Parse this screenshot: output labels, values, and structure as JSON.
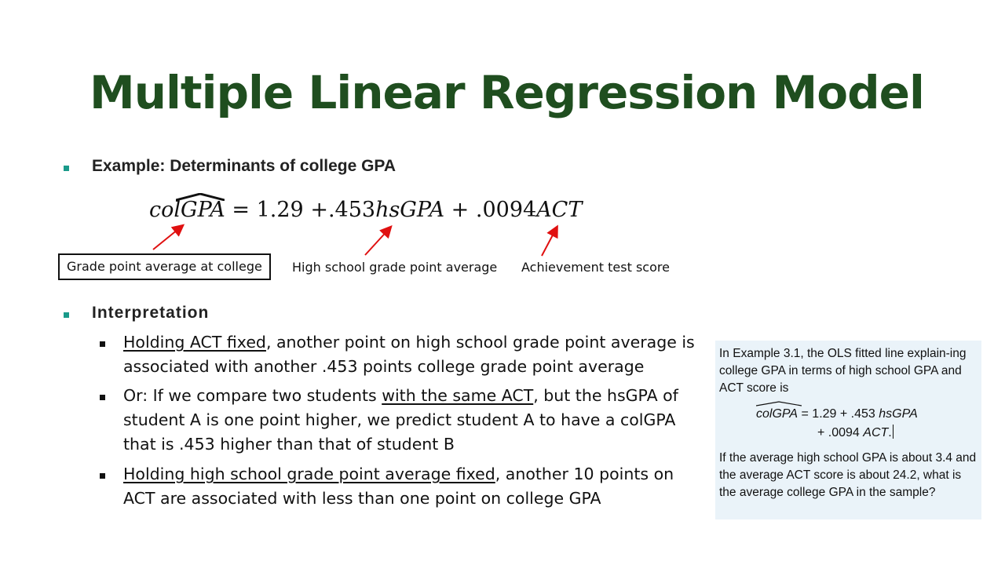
{
  "title": "Multiple Linear Regression Model",
  "example_heading": "Example: Determinants of college GPA",
  "equation": {
    "lhs": "colGPA",
    "rhs": "= 1.29 + .453hsGPA + .0094ACT",
    "terms": [
      "col",
      "GPA",
      "=",
      "1.29",
      "+",
      ".453",
      "hsGPA",
      "+",
      ".0094",
      "ACT"
    ]
  },
  "labels": {
    "colgpa": "Grade point average at college",
    "hsgpa": "High school grade point average",
    "act": "Achievement test score"
  },
  "interpretation_heading": "Interpretation",
  "bullets": [
    {
      "underlined": "Holding ACT fixed",
      "rest": ", another point on high school grade point average is associated with another .453 points college grade point average"
    },
    {
      "before": "Or: If we compare two students ",
      "underlined": "with the same ACT",
      "rest": ", but the hsGPA of student A is one point higher, we predict student A to have a colGPA that is .453 higher than that of student B"
    },
    {
      "underlined": "Holding high school grade point average fixed",
      "rest": ", another 10 points on ACT are associated with less than one point on college GPA"
    }
  ],
  "sidebox": {
    "intro": "In Example 3.1, the OLS fitted line explain-ing college GPA in terms of high school GPA and ACT score is",
    "eq_line1_lhs": "colGPA",
    "eq_line1_rest_a": " = 1.29 + .453 ",
    "eq_line1_var": "hsGPA",
    "eq_line2_a": "+ .0094 ",
    "eq_line2_var": "ACT",
    "eq_line2_end": ".",
    "question": "If the average high school GPA is about 3.4 and the average ACT score is about 24.2, what is the average college GPA in the sample?"
  },
  "colors": {
    "title": "#1f4e1f",
    "bullet": "#1a9a8a",
    "arrow": "#e01010",
    "box_bg": "#eaf3f9"
  }
}
